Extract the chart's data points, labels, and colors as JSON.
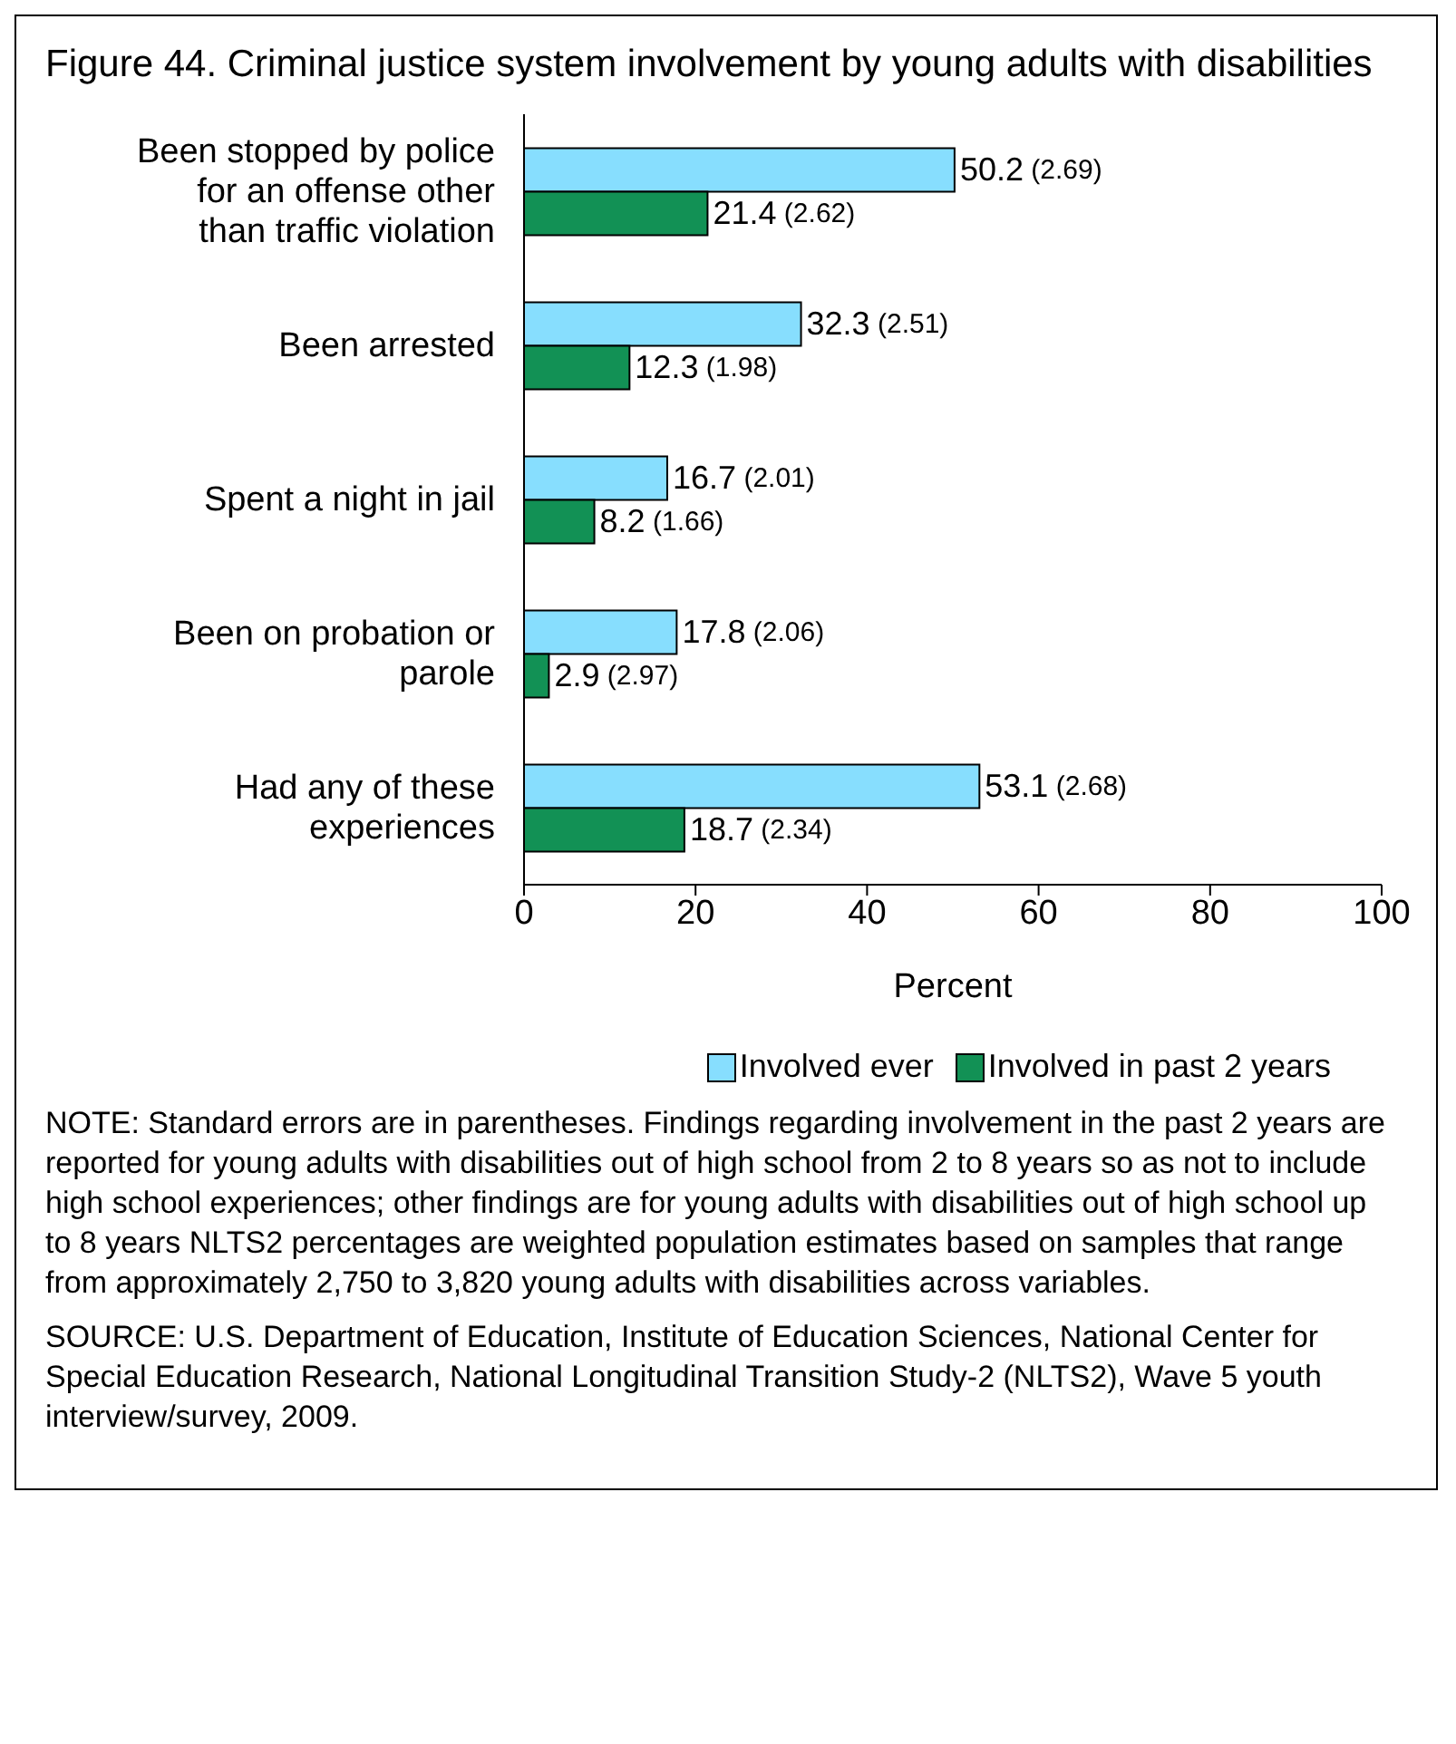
{
  "chart_data": {
    "type": "bar",
    "orientation": "horizontal",
    "title": "Figure 44.  Criminal justice system involvement by young adults with disabilities",
    "categories": [
      "Been stopped by police for an offense other than traffic violation",
      "Been arrested",
      "Spent a night in jail",
      "Been on probation or parole",
      "Had any of these experiences"
    ],
    "series": [
      {
        "name": "Involved ever",
        "color": "#87defe",
        "values": [
          50.2,
          32.3,
          16.7,
          17.8,
          53.1
        ],
        "value_labels": [
          "50.2 (2.69)",
          "32.3 (2.51)",
          "16.7 (2.01)",
          "17.8 (2.06)",
          "53.1 (2.68)"
        ]
      },
      {
        "name": "Involved in past 2 years",
        "color": "#129155",
        "values": [
          21.4,
          12.3,
          8.2,
          2.9,
          18.7
        ],
        "value_labels": [
          "21.4 (2.62)",
          "12.3 (1.98)",
          "8.2 (1.66)",
          "2.9 (2.97)",
          "18.7 (2.34)"
        ]
      }
    ],
    "xlim": [
      0,
      100
    ],
    "xticks": [
      0,
      20,
      40,
      60,
      80,
      100
    ],
    "xlabel": "Percent",
    "grid": false,
    "legend": "bottom",
    "annotations": [
      "NOTE: Standard errors are in parentheses. Findings regarding involvement in the past 2 years are reported for young adults with disabilities out of high school from 2 to 8 years so as not to include high school experiences; other findings are for young adults with disabilities out of high school up to 8 years NLTS2 percentages are weighted population estimates based on samples that range from approximately 2,750 to 3,820 young adults with disabilities across variables.",
      "SOURCE: U.S. Department of Education, Institute of Education Sciences, National Center for Special Education Research, National Longitudinal Transition Study-2 (NLTS2), Wave 5 youth interview/survey, 2009."
    ]
  }
}
